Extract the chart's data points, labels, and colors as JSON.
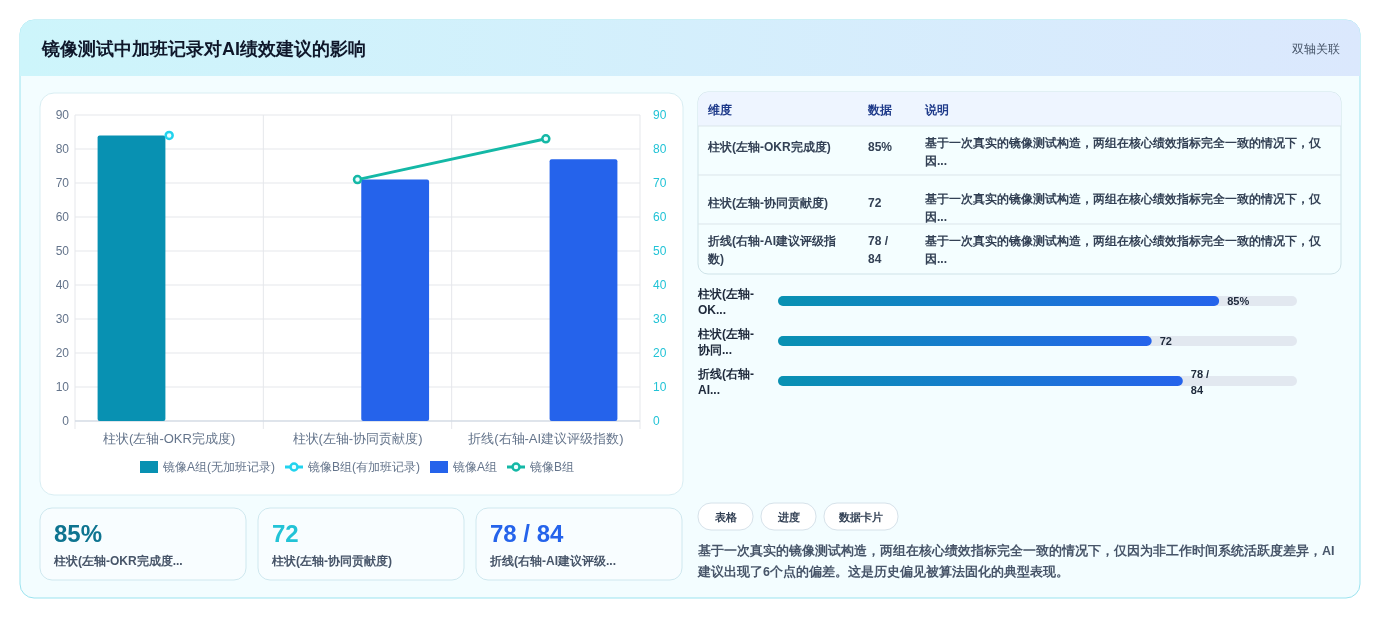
{
  "chart_data": [
    {
      "type": "bar",
      "title": "镜像测试中加班记录对AI绩效建议的影响",
      "annotations": [
        "双轴关联"
      ],
      "categories": [
        "柱状(左轴-OKR完成度)",
        "柱状(左轴-协同贡献度)",
        "折线(右轴-AI建议评级指数)"
      ],
      "series": [
        {
          "name": "镜像A组(无加班记录)",
          "type": "bar",
          "color": "#0891b2",
          "values": [
            84,
            null,
            null
          ]
        },
        {
          "name": "镜像B组(有加班记录)",
          "type": "line",
          "color": "#22d3ee",
          "values": [
            84,
            null,
            null
          ]
        },
        {
          "name": "镜像A组",
          "type": "bar",
          "color": "#2563eb",
          "values": [
            null,
            71,
            77
          ]
        },
        {
          "name": "镜像B组",
          "type": "line",
          "axis": "y2",
          "color": "#14b8a6",
          "values": [
            null,
            71,
            83
          ]
        }
      ],
      "ylim": [
        0,
        90
      ],
      "yticks": [
        0,
        10,
        20,
        30,
        40,
        50,
        60,
        70,
        80,
        90
      ],
      "y2lim": [
        0,
        90
      ],
      "y2ticks": [
        0,
        10,
        20,
        30,
        40,
        50,
        60,
        70,
        80,
        90
      ],
      "grid": true,
      "legend": "bottom",
      "marker": "circle"
    },
    {
      "type": "other",
      "annotations": [
        "维度",
        "数据",
        "说明",
        "柱状(左轴-OKR完成度)",
        "85%",
        "基于一次真实的镜像测试构造，两组在核心绩效指标完全一致的情况下，仅因...",
        "柱状(左轴-协同贡献度)",
        "72",
        "基于一次真实的镜像测试构造，两组在核心绩效指标完全一致的情况下，仅因...",
        "折线(右轴-AI建议评级指数)",
        "78 / 84",
        "基于一次真实的镜像测试构造，两组在核心绩效指标完全一致的情况下，仅因..."
      ]
    },
    {
      "type": "bar",
      "orientation": "horizontal",
      "categories": [
        "柱状(左轴-OK...",
        "柱状(左轴-协同...",
        "折线(右轴-AI..."
      ],
      "values": [
        85,
        72,
        78
      ],
      "value_labels": [
        "85%",
        "72",
        "78 / 84"
      ],
      "color": "#2563eb",
      "xlim": [
        0,
        100
      ],
      "tick_labels": false
    },
    {
      "type": "other",
      "annotations": [
        "85%",
        "柱状(左轴-OKR完成度...",
        "72",
        "柱状(左轴-协同贡献度)",
        "78 / 84",
        "折线(右轴-AI建议评级..."
      ]
    },
    {
      "type": "other",
      "annotations": [
        "表格",
        "进度",
        "数据卡片",
        "基于一次真实的镜像测试构造，两组在核心绩效指标完全一致的情况下，仅因为非工作时间系统活跃度差异，AI建议出现了6个点的偏差。这是历史偏见被算法固化的典型表现。"
      ]
    }
  ]
}
